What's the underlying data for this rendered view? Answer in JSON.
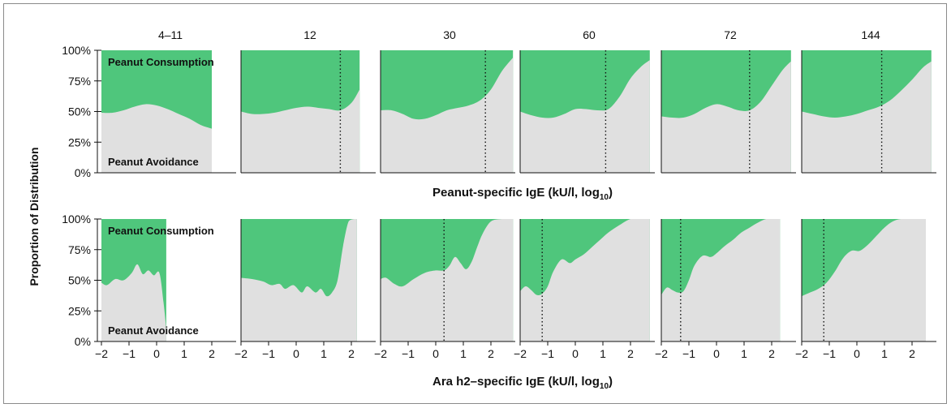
{
  "chart_data": {
    "type": "area",
    "ylabel": "Proportion of Distribution",
    "y_ticks": [
      "100%",
      "75%",
      "50%",
      "25%",
      "0%"
    ],
    "x_ticks": [
      "−2",
      "−1",
      "0",
      "1",
      "2"
    ],
    "ylim": [
      0,
      100
    ],
    "colors": {
      "consumption": "#4fc67c",
      "avoidance": "#e0e0e0"
    },
    "column_labels": [
      "4–11",
      "12",
      "30",
      "60",
      "72",
      "144"
    ],
    "legend": {
      "consumption": "Peanut Consumption",
      "avoidance": "Peanut Avoidance"
    },
    "rows": [
      {
        "xlabel": "Peanut-specific IgE (kU/l, log",
        "xlabel_sub": "10",
        "xlabel_end": ")",
        "xlim": [
          -2,
          2.8
        ],
        "panels": [
          {
            "x": [
              -2.0,
              -1.6,
              -1.2,
              -0.8,
              -0.4,
              0,
              0.4,
              0.8,
              1.2,
              1.6,
              2.0
            ],
            "avoidance": [
              49,
              49,
              51,
              54,
              56,
              55,
              52,
              48,
              44,
              39,
              36
            ],
            "threshold": null
          },
          {
            "x": [
              -2.0,
              -1.6,
              -1.2,
              -0.8,
              -0.4,
              0,
              0.4,
              0.8,
              1.2,
              1.6,
              2.0,
              2.3
            ],
            "avoidance": [
              50,
              48,
              48,
              49,
              51,
              53,
              54,
              53,
              52,
              51,
              57,
              68
            ],
            "threshold": 1.6
          },
          {
            "x": [
              -2.0,
              -1.6,
              -1.2,
              -0.8,
              -0.4,
              0,
              0.4,
              0.8,
              1.2,
              1.6,
              2.0,
              2.4,
              2.8
            ],
            "avoidance": [
              51,
              51,
              48,
              44,
              44,
              47,
              51,
              53,
              55,
              59,
              68,
              83,
              94
            ],
            "threshold": 1.8
          },
          {
            "x": [
              -2.0,
              -1.6,
              -1.2,
              -0.8,
              -0.4,
              0,
              0.4,
              0.8,
              1.2,
              1.6,
              2.0,
              2.4,
              2.7
            ],
            "avoidance": [
              50,
              47,
              45,
              45,
              48,
              52,
              52,
              51,
              52,
              62,
              77,
              87,
              92
            ],
            "threshold": 1.1
          },
          {
            "x": [
              -2.0,
              -1.6,
              -1.2,
              -0.8,
              -0.4,
              0,
              0.4,
              0.8,
              1.2,
              1.6,
              2.0,
              2.4,
              2.7
            ],
            "avoidance": [
              46,
              45,
              45,
              48,
              53,
              56,
              54,
              51,
              51,
              58,
              71,
              84,
              91
            ],
            "threshold": 1.2
          },
          {
            "x": [
              -2.0,
              -1.6,
              -1.2,
              -0.8,
              -0.4,
              0,
              0.4,
              0.8,
              1.2,
              1.6,
              2.0,
              2.4,
              2.7
            ],
            "avoidance": [
              50,
              48,
              46,
              45,
              46,
              48,
              51,
              54,
              59,
              67,
              76,
              86,
              91
            ],
            "threshold": 0.9
          }
        ]
      },
      {
        "xlabel": "Ara h2–specific IgE (kU/l, log",
        "xlabel_sub": "10",
        "xlabel_end": ")",
        "xlim": [
          -2,
          2.8
        ],
        "panels": [
          {
            "x": [
              -2.0,
              -1.8,
              -1.5,
              -1.2,
              -0.9,
              -0.7,
              -0.5,
              -0.3,
              -0.1,
              0.1,
              0.25,
              0.35
            ],
            "avoidance": [
              48,
              46,
              51,
              50,
              56,
              63,
              55,
              58,
              54,
              56,
              32,
              10
            ],
            "threshold": null
          },
          {
            "x": [
              -2.0,
              -1.6,
              -1.2,
              -0.9,
              -0.6,
              -0.4,
              -0.1,
              0.2,
              0.4,
              0.7,
              0.9,
              1.1,
              1.3,
              1.5,
              1.7,
              1.9,
              2.1,
              2.2
            ],
            "avoidance": [
              52,
              51,
              49,
              46,
              47,
              43,
              46,
              40,
              45,
              40,
              43,
              37,
              40,
              50,
              78,
              98,
              100,
              100
            ],
            "threshold": null
          },
          {
            "x": [
              -2.0,
              -1.8,
              -1.5,
              -1.2,
              -0.8,
              -0.4,
              0,
              0.3,
              0.5,
              0.7,
              0.9,
              1.1,
              1.3,
              1.5,
              1.7,
              2.0,
              2.4,
              2.8
            ],
            "avoidance": [
              51,
              52,
              47,
              45,
              51,
              56,
              58,
              58,
              62,
              69,
              64,
              59,
              65,
              77,
              88,
              98,
              100,
              100
            ],
            "threshold": 0.3
          },
          {
            "x": [
              -2.0,
              -1.8,
              -1.6,
              -1.4,
              -1.2,
              -1.0,
              -0.8,
              -0.5,
              -0.2,
              0,
              0.3,
              0.6,
              0.9,
              1.2,
              1.6,
              2.0,
              2.4,
              2.7
            ],
            "avoidance": [
              41,
              45,
              42,
              38,
              39,
              45,
              57,
              67,
              64,
              67,
              71,
              77,
              83,
              89,
              95,
              100,
              100,
              100
            ],
            "threshold": -1.2
          },
          {
            "x": [
              -2.0,
              -1.8,
              -1.6,
              -1.4,
              -1.2,
              -1.0,
              -0.8,
              -0.5,
              -0.2,
              0,
              0.3,
              0.6,
              0.9,
              1.2,
              1.5,
              1.8,
              2.1,
              2.3
            ],
            "avoidance": [
              38,
              44,
              42,
              40,
              41,
              50,
              62,
              70,
              69,
              72,
              78,
              83,
              89,
              93,
              97,
              100,
              100,
              100
            ],
            "threshold": -1.3
          },
          {
            "x": [
              -2.0,
              -1.7,
              -1.4,
              -1.1,
              -0.8,
              -0.5,
              -0.2,
              0.1,
              0.4,
              0.7,
              1.0,
              1.3,
              1.6,
              2.0,
              2.5
            ],
            "avoidance": [
              37,
              40,
              43,
              48,
              57,
              68,
              74,
              74,
              79,
              86,
              93,
              98,
              100,
              100,
              100
            ],
            "threshold": -1.2
          }
        ]
      }
    ]
  }
}
